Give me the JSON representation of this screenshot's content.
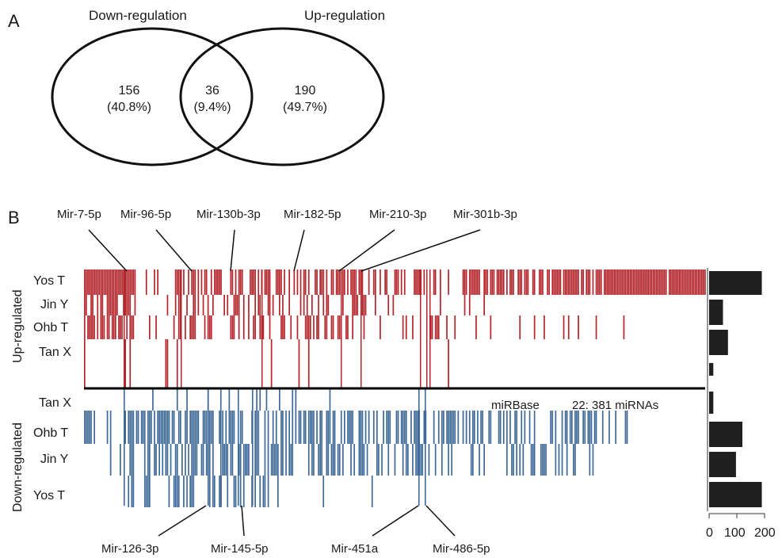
{
  "panel_a": {
    "letter": "A",
    "left_title": "Down-regulation",
    "right_title": "Up-regulation",
    "left_only": {
      "count": "156",
      "percent": "(40.8%)"
    },
    "overlap": {
      "count": "36",
      "percent": "(9.4%)"
    },
    "right_only": {
      "count": "190",
      "percent": "(49.7%)"
    }
  },
  "panel_b": {
    "letter": "B",
    "group_up": "Up-regulated",
    "group_down": "Down-regulated",
    "rows_up": [
      "Yos T",
      "Jin Y",
      "Ohb T",
      "Tan X"
    ],
    "rows_down": [
      "Tan X",
      "Ohb T",
      "Jin Y",
      "Yos T"
    ],
    "mirs_top": [
      "Mir-7-5p",
      "Mir-96-5p",
      "Mir-130b-3p",
      "Mir-182-5p",
      "Mir-210-3p",
      "Mir-301b-3p"
    ],
    "mirs_bottom": [
      "Mir-126-3p",
      "Mir-145-5p",
      "Mir-451a",
      "Mir-486-5p"
    ],
    "note_db": "miRBase",
    "note_count": "22: 381 miRNAs",
    "colors": {
      "up": "#b3262b",
      "down": "#3f6a98",
      "bar": "#1f1f1f"
    }
  },
  "chart_data": {
    "type": "bar",
    "categories": [
      "Yos T (up)",
      "Jin Y (up)",
      "Ohb T (up)",
      "Tan X (up)",
      "Tan X (down)",
      "Ohb T (down)",
      "Jin Y (down)",
      "Yos T (down)"
    ],
    "values": [
      190,
      50,
      68,
      15,
      15,
      120,
      97,
      190
    ],
    "xlim": [
      0,
      200
    ],
    "ticks": [
      "0",
      "100",
      "200"
    ]
  }
}
